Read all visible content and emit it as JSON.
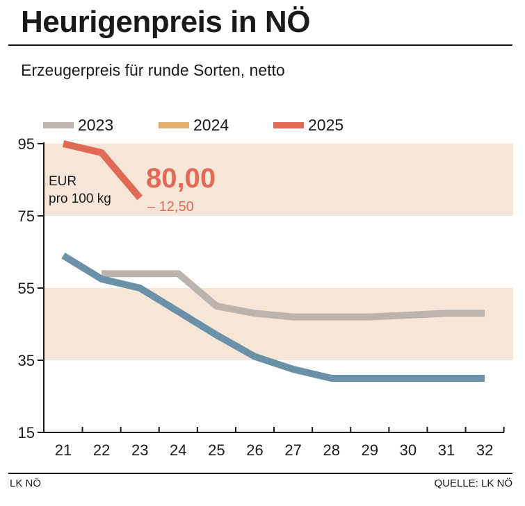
{
  "header": {
    "title": "Heurigenpreis in NÖ",
    "subtitle": "Erzeugerpreis für runde Sorten, netto"
  },
  "footer": {
    "left": "LK NÖ",
    "right": "QUELLE: LK NÖ"
  },
  "colors": {
    "band": "#f5e6d8",
    "axis": "#1a1a1a",
    "accent": "#e06a55"
  },
  "chart_data": {
    "type": "line",
    "unit_label_line1": "EUR",
    "unit_label_line2": "pro 100 kg",
    "highlight": {
      "value": "80,00",
      "delta": "– 12,50"
    },
    "x": [
      21,
      22,
      23,
      24,
      25,
      26,
      27,
      28,
      29,
      30,
      31,
      32
    ],
    "x_tick_labels": [
      "21",
      "22",
      "23",
      "24",
      "25",
      "26",
      "27",
      "28",
      "29",
      "30",
      "31",
      "32"
    ],
    "y_ticks": [
      15,
      35,
      55,
      75,
      95
    ],
    "y_tick_labels": [
      "15",
      "35",
      "55",
      "75",
      "95"
    ],
    "ylim": [
      15,
      95
    ],
    "shaded_bands": [
      [
        35,
        55
      ],
      [
        75,
        95
      ]
    ],
    "legend_placement": "top",
    "series": [
      {
        "name": "2023",
        "color": "#bcb3ad",
        "points": [
          [
            22,
            59
          ],
          [
            23,
            59
          ],
          [
            24,
            59
          ],
          [
            25,
            50
          ],
          [
            26,
            48
          ],
          [
            27,
            47
          ],
          [
            28,
            47
          ],
          [
            29,
            47
          ],
          [
            30,
            47.5
          ],
          [
            31,
            48
          ],
          [
            32,
            48
          ]
        ]
      },
      {
        "name": "2024",
        "color": "#e3ad6c",
        "points": [
          [
            21,
            64
          ],
          [
            22,
            57.5
          ],
          [
            23,
            55
          ],
          [
            24,
            48.5
          ],
          [
            25,
            42
          ],
          [
            26,
            36
          ],
          [
            27,
            32.5
          ],
          [
            28,
            30
          ],
          [
            29,
            30
          ],
          [
            30,
            30
          ],
          [
            31,
            30
          ],
          [
            32,
            30
          ]
        ]
      },
      {
        "name": "2025",
        "color": "#e06a55",
        "points": [
          [
            21,
            95
          ],
          [
            22,
            92.5
          ],
          [
            23,
            80
          ]
        ]
      }
    ]
  }
}
